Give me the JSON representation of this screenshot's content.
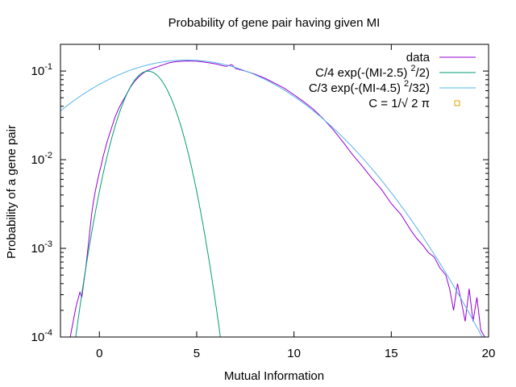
{
  "chart_data": {
    "type": "line",
    "title": "Probability of gene pair having given MI",
    "xlabel": "Mutual Information",
    "ylabel": "Probability of a gene pair",
    "xlim": [
      -2,
      20
    ],
    "ylim": [
      0.0001,
      0.2
    ],
    "yscale": "log",
    "x_ticks": [
      0,
      5,
      10,
      15,
      20
    ],
    "x_tick_labels": [
      "0",
      "5",
      "10",
      "15",
      "20"
    ],
    "y_ticks": [
      0.0001,
      0.001,
      0.01,
      0.1
    ],
    "y_tick_labels": [
      {
        "base": "10",
        "exp": "-4"
      },
      {
        "base": "10",
        "exp": "-3"
      },
      {
        "base": "10",
        "exp": "-2"
      },
      {
        "base": "10",
        "exp": "-1"
      }
    ],
    "grid": false,
    "legend_position": "top-right",
    "series": [
      {
        "name": "data",
        "label_main": "data",
        "label_sup": "",
        "label_tail": "",
        "color": "#9400d3",
        "style": "line",
        "x": [
          -1.5,
          -1.2,
          -1.0,
          -0.9,
          -0.8,
          -0.7,
          -0.6,
          -0.5,
          -0.4,
          -0.3,
          -0.2,
          -0.1,
          0.0,
          0.1,
          0.2,
          0.4,
          0.6,
          0.8,
          1.0,
          1.2,
          1.4,
          1.6,
          1.8,
          2.0,
          2.2,
          2.4,
          2.6,
          2.8,
          3.0,
          3.3,
          3.6,
          4.0,
          4.5,
          5.0,
          5.5,
          6.0,
          6.5,
          6.8,
          7.0,
          7.5,
          8.0,
          8.5,
          9.0,
          9.5,
          10.0,
          10.5,
          11.0,
          11.5,
          12.0,
          12.5,
          13.0,
          13.5,
          14.0,
          14.5,
          15.0,
          15.5,
          16.0,
          16.3,
          16.6,
          16.9,
          17.2,
          17.5,
          17.8,
          18.0,
          18.2,
          18.4,
          18.6,
          18.8,
          19.0,
          19.2,
          19.4,
          19.6,
          19.8
        ],
        "y": [
          0.0001,
          0.00022,
          0.00032,
          0.00028,
          0.00042,
          0.0006,
          0.00095,
          0.0015,
          0.0024,
          0.0034,
          0.0045,
          0.0058,
          0.0072,
          0.0088,
          0.011,
          0.016,
          0.022,
          0.03,
          0.038,
          0.046,
          0.055,
          0.066,
          0.076,
          0.085,
          0.093,
          0.1,
          0.104,
          0.108,
          0.112,
          0.118,
          0.124,
          0.128,
          0.13,
          0.129,
          0.125,
          0.12,
          0.113,
          0.118,
          0.107,
          0.1,
          0.092,
          0.083,
          0.073,
          0.064,
          0.054,
          0.045,
          0.037,
          0.029,
          0.022,
          0.016,
          0.0115,
          0.0085,
          0.0062,
          0.0046,
          0.0032,
          0.0024,
          0.0016,
          0.0013,
          0.0011,
          0.0009,
          0.0008,
          0.0006,
          0.0005,
          0.00035,
          0.0002,
          0.0004,
          0.00025,
          0.00015,
          0.00035,
          0.00015,
          0.00028,
          0.00012,
          0.0001
        ]
      },
      {
        "name": "C/4 exp(-(MI-2.5)^2/2)",
        "label_main": "C/4 exp(-(MI-2.5)",
        "label_sup": "2",
        "label_tail": "/2)",
        "color": "#009e73",
        "style": "line",
        "formula": {
          "mu": 2.5,
          "var": 1,
          "scale": 0.25,
          "x_start": -1.5,
          "x_end": 6.5
        }
      },
      {
        "name": "C/3 exp(-(MI-4.5)^2/32)",
        "label_main": "C/3 exp(-(MI-4.5)",
        "label_sup": "2",
        "label_tail": "/32)",
        "color": "#56b4e9",
        "style": "line",
        "formula": {
          "mu": 4.5,
          "var": 16,
          "scale": 0.3333,
          "x_start": -2,
          "x_end": 20
        }
      },
      {
        "name": "C = 1/√ 2 π",
        "label_main": "C = 1/√ 2 π",
        "label_sup": "",
        "label_tail": "",
        "color": "#e69f00",
        "style": "point"
      }
    ]
  }
}
